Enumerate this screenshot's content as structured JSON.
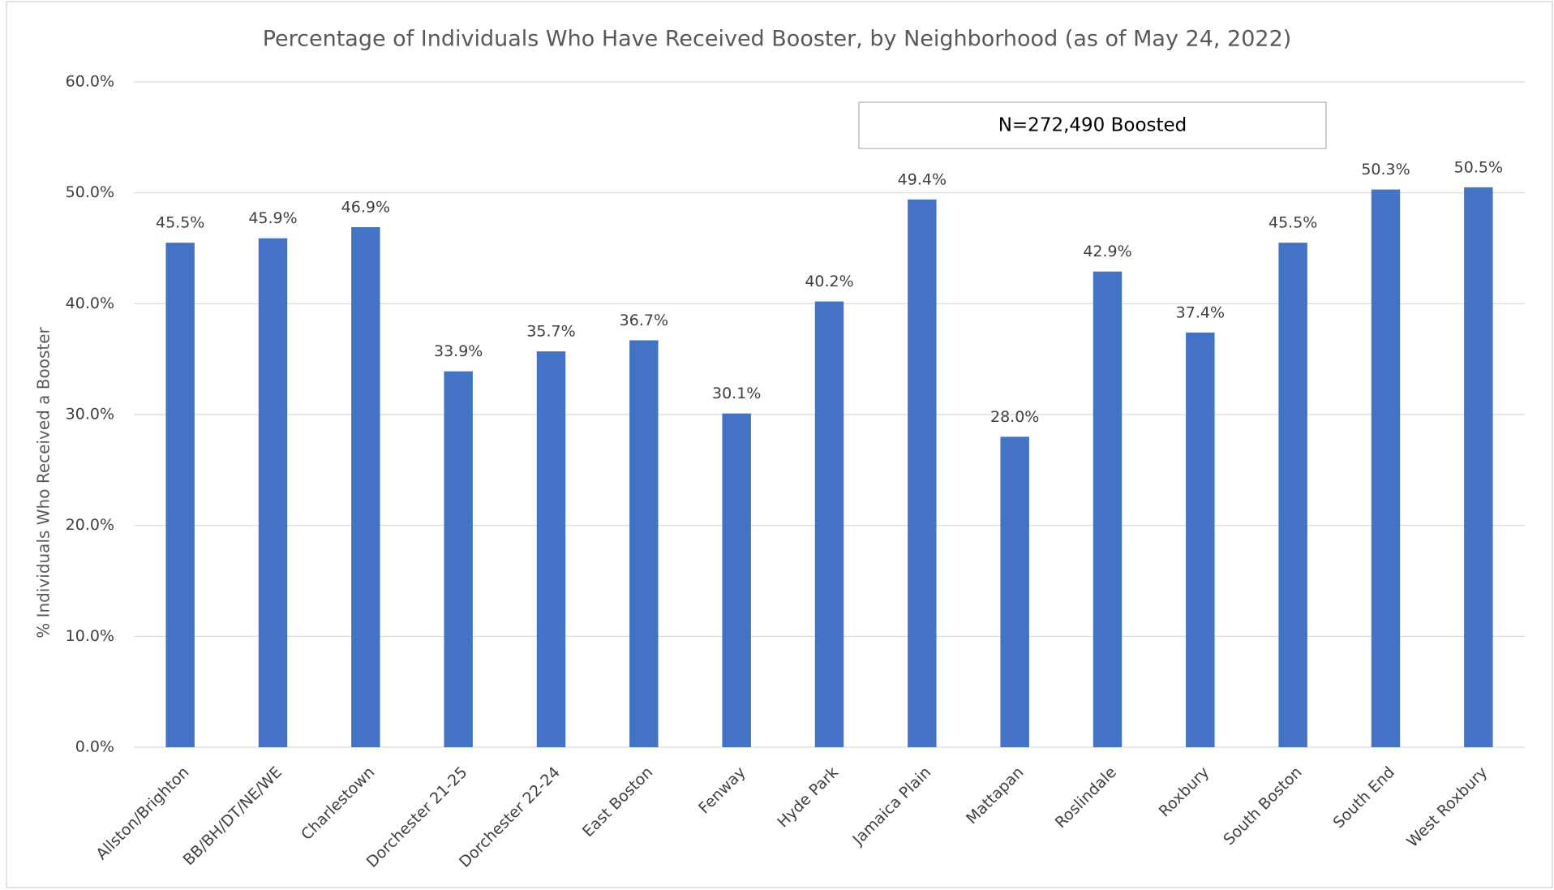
{
  "chart_data": {
    "type": "bar",
    "title": "Percentage of Individuals Who Have Received Booster, by Neighborhood (as of May 24, 2022)",
    "y_label": "% Individuals Who Received a Booster",
    "annotation": "N=272,490 Boosted",
    "categories": [
      "Allston/Brighton",
      "BB/BH/DT/NE/WE",
      "Charlestown",
      "Dorchester 21-25",
      "Dorchester 22-24",
      "East Boston",
      "Fenway",
      "Hyde Park",
      "Jamaica Plain",
      "Mattapan",
      "Roslindale",
      "Roxbury",
      "South Boston",
      "South End",
      "West Roxbury"
    ],
    "values": [
      45.5,
      45.9,
      46.9,
      33.9,
      35.7,
      36.7,
      30.1,
      40.2,
      49.4,
      28.0,
      42.9,
      37.4,
      45.5,
      50.3,
      50.5
    ],
    "value_labels": [
      "45.5%",
      "45.9%",
      "46.9%",
      "33.9%",
      "35.7%",
      "36.7%",
      "30.1%",
      "40.2%",
      "49.4%",
      "28.0%",
      "42.9%",
      "37.4%",
      "45.5%",
      "50.3%",
      "50.5%"
    ],
    "color": "#4472c4",
    "ylim": [
      0,
      60
    ],
    "yticks": [
      {
        "value": 0,
        "label": "0.0%"
      },
      {
        "value": 10,
        "label": "10.0%"
      },
      {
        "value": 20,
        "label": "20.0%"
      },
      {
        "value": 30,
        "label": "30.0%"
      },
      {
        "value": 40,
        "label": "40.0%"
      },
      {
        "value": 50,
        "label": "50.0%"
      },
      {
        "value": 60,
        "label": "60.0%"
      }
    ],
    "grid": true
  }
}
